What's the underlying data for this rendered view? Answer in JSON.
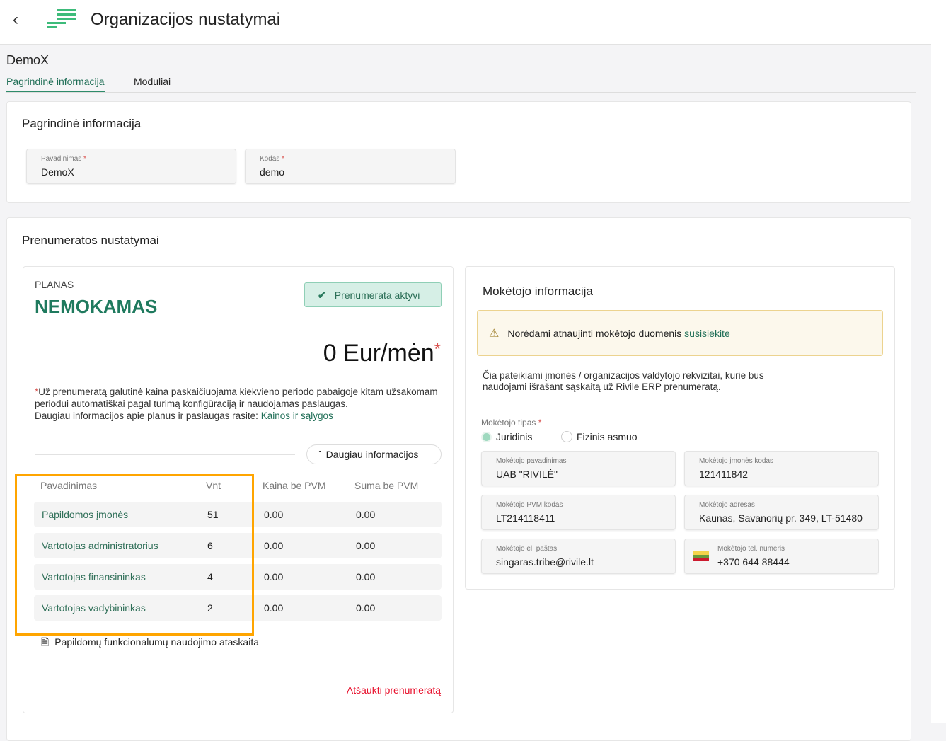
{
  "header": {
    "title": "Organizacijos nustatymai",
    "back_icon": "chevron-left-icon",
    "logo_icon": "rivile-logo-icon"
  },
  "org_name": "DemoX",
  "tabs": [
    {
      "label": "Pagrindinė informacija",
      "active": true
    },
    {
      "label": "Moduliai",
      "active": false
    }
  ],
  "basic": {
    "title": "Pagrindinė informacija",
    "fields": [
      {
        "label": "Pavadinimas",
        "required": "*",
        "value": "DemoX"
      },
      {
        "label": "Kodas",
        "required": "*",
        "value": "demo"
      }
    ]
  },
  "subscription": {
    "title": "Prenumeratos nustatymai",
    "plan_label": "PLANAS",
    "plan_name": "NEMOKAMAS",
    "status": "Prenumerata aktyvi",
    "price": "0 Eur/mėn",
    "price_mark": "*",
    "note_mark": "*",
    "note": "Už prenumeratą galutinė kaina paskaičiuojama kiekvieno periodo pabaigoje kitam užsakomam periodui automatiškai pagal turimą konfigūraciją ir naudojamas paslaugas.",
    "note2": "Daugiau informacijos apie planus ir paslaugas rasite: ",
    "terms_link": "Kainos ir sąlygos",
    "more_info": "Daugiau informacijos",
    "table": {
      "headers": [
        "Pavadinimas",
        "Vnt",
        "Kaina be PVM",
        "Suma be PVM"
      ],
      "rows": [
        [
          "Papildomos įmonės",
          "51",
          "0.00",
          "0.00"
        ],
        [
          "Vartotojas administratorius",
          "6",
          "0.00",
          "0.00"
        ],
        [
          "Vartotojas finansininkas",
          "4",
          "0.00",
          "0.00"
        ],
        [
          "Vartotojas vadybininkas",
          "2",
          "0.00",
          "0.00"
        ]
      ]
    },
    "report_link": "Papildomų funkcionalumų naudojimo ataskaita",
    "cancel": "Atšaukti prenumeratą"
  },
  "payer": {
    "title": "Mokėtojo informacija",
    "warning": "Norėdami atnaujinti mokėtojo duomenis ",
    "warning_link": "susisiekite",
    "description": "Čia pateikiami įmonės / organizacijos valdytojo rekvizitai, kurie bus naudojami išrašant sąskaitą už Rivile ERP prenumeratą.",
    "type_label": "Mokėtojo tipas",
    "type_required": "*",
    "types": [
      {
        "label": "Juridinis",
        "selected": true
      },
      {
        "label": "Fizinis asmuo",
        "selected": false
      }
    ],
    "fields": [
      {
        "label": "Mokėtojo pavadinimas",
        "value": "UAB \"RIVILĖ\""
      },
      {
        "label": "Mokėtojo įmonės kodas",
        "value": "121411842"
      },
      {
        "label": "Mokėtojo PVM kodas",
        "value": "LT214118411"
      },
      {
        "label": "Mokėtojo adresas",
        "value": "Kaunas, Savanorių pr. 349, LT-51480"
      },
      {
        "label": "Mokėtojo el. paštas",
        "value": "singaras.tribe@rivile.lt"
      },
      {
        "label": "Mokėtojo tel. numeris",
        "value": "+370 644 88444"
      }
    ]
  },
  "colors": {
    "accent": "#2e8b6a",
    "highlight": "#ffa500",
    "danger": "#e8112d"
  }
}
